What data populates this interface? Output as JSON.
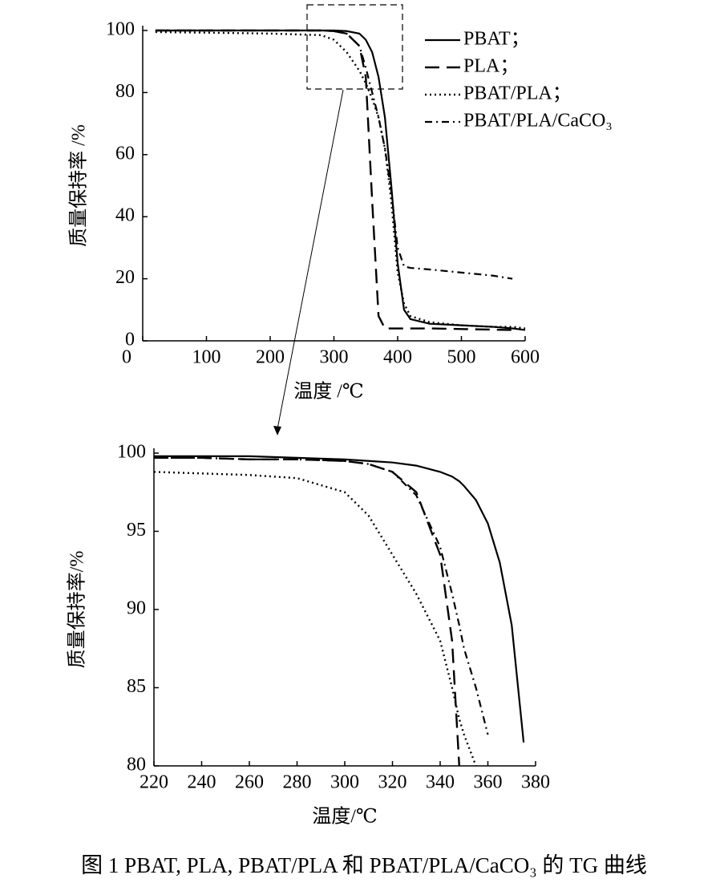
{
  "caption": "图 1   PBAT, PLA, PBAT/PLA 和 PBAT/PLA/CaCO₃ 的 TG 曲线",
  "chart_data": [
    {
      "type": "line",
      "xlabel": "温度 /℃",
      "ylabel": "质量保持率 /%",
      "x": [
        20,
        100,
        200,
        280,
        300,
        320,
        340,
        350,
        360,
        370,
        380,
        390,
        400,
        410,
        420,
        450,
        500,
        550,
        580,
        600
      ],
      "xlim": [
        0,
        600
      ],
      "xticks": [
        0,
        100,
        200,
        300,
        400,
        500,
        600
      ],
      "ylim": [
        0,
        100
      ],
      "yticks": [
        0,
        20,
        40,
        60,
        80,
        100
      ],
      "legend": "upper right",
      "series": [
        {
          "name": "PBAT；",
          "color": "#000000",
          "style": "solid",
          "values": [
            100,
            100,
            100,
            100,
            100,
            99.8,
            99,
            97,
            93,
            85,
            72,
            50,
            25,
            10,
            7,
            5.5,
            5,
            4.5,
            4,
            3.5
          ]
        },
        {
          "name": "PLA；",
          "color": "#000000",
          "style": "dashed",
          "values": [
            100,
            100,
            100,
            100,
            99.8,
            99,
            95,
            85,
            45,
            8,
            4,
            4,
            4,
            4,
            4,
            4,
            3.8,
            3.6,
            3.5,
            null
          ]
        },
        {
          "name": "PBAT/PLA；",
          "color": "#000000",
          "style": "dotted",
          "values": [
            99.5,
            99.3,
            99,
            98.5,
            97,
            93,
            87,
            83,
            78,
            72,
            62,
            45,
            22,
            12,
            8,
            6,
            5,
            4.5,
            4.5,
            4
          ]
        },
        {
          "name": "PBAT/PLA/CaCO₃",
          "color": "#000000",
          "style": "dashdot",
          "values": [
            100,
            100,
            100,
            100,
            99.8,
            99,
            95,
            88,
            80,
            72,
            62,
            48,
            30,
            24,
            23.5,
            23,
            22,
            21,
            20,
            null
          ]
        }
      ]
    },
    {
      "type": "line",
      "xlabel": "温度/℃",
      "ylabel": "质量保持率/%",
      "x": [
        220,
        240,
        260,
        280,
        300,
        310,
        320,
        330,
        340,
        345,
        348,
        350,
        355,
        360,
        365,
        370,
        375
      ],
      "xlim": [
        220,
        380
      ],
      "xticks": [
        220,
        240,
        260,
        280,
        300,
        320,
        340,
        360,
        380
      ],
      "ylim": [
        80,
        100
      ],
      "yticks": [
        80,
        85,
        90,
        95,
        100
      ],
      "series": [
        {
          "color": "#000000",
          "style": "solid",
          "values": [
            99.8,
            99.8,
            99.8,
            99.7,
            99.6,
            99.5,
            99.4,
            99.2,
            98.8,
            98.5,
            98.2,
            97.9,
            97,
            95.5,
            93,
            89,
            81.5
          ]
        },
        {
          "color": "#000000",
          "style": "dashed",
          "values": [
            99.7,
            99.7,
            99.6,
            99.6,
            99.5,
            99.3,
            98.8,
            97.5,
            93.5,
            88,
            80,
            null,
            null,
            null,
            null,
            null,
            null
          ]
        },
        {
          "color": "#000000",
          "style": "dotted",
          "values": [
            98.8,
            98.7,
            98.6,
            98.4,
            97.5,
            96,
            93.5,
            91,
            88,
            85,
            83,
            82,
            80,
            null,
            null,
            null,
            null
          ]
        },
        {
          "color": "#000000",
          "style": "dashdot",
          "values": [
            99.7,
            99.7,
            99.6,
            99.6,
            99.5,
            99.3,
            98.8,
            97.3,
            94,
            91,
            89,
            87.5,
            85,
            82,
            null,
            null,
            null
          ]
        }
      ]
    }
  ]
}
